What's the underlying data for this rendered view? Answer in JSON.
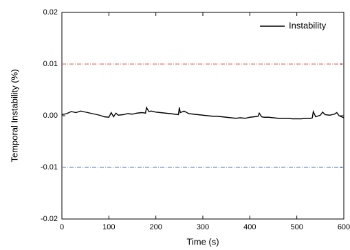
{
  "chart_data": {
    "type": "line",
    "xlabel": "Time (s)",
    "ylabel": "Temporal Instability (%)",
    "xlim": [
      0,
      600
    ],
    "ylim": [
      -0.02,
      0.02
    ],
    "xticks": [
      0,
      100,
      200,
      300,
      400,
      500,
      600
    ],
    "yticks": [
      -0.02,
      -0.01,
      {
        "value": 0,
        "label": "0.00"
      },
      0.01,
      0.02
    ],
    "hlines": [
      {
        "value": 0.01,
        "color": "#e05050"
      },
      {
        "value": -0.01,
        "color": "#5070b0"
      }
    ],
    "legend": "upper right",
    "x": [
      0,
      10,
      20,
      30,
      40,
      50,
      60,
      70,
      80,
      90,
      100,
      105,
      110,
      115,
      120,
      130,
      140,
      150,
      160,
      170,
      178,
      180,
      185,
      190,
      200,
      210,
      220,
      230,
      240,
      248,
      250,
      252,
      260,
      270,
      280,
      290,
      300,
      310,
      320,
      330,
      340,
      350,
      360,
      370,
      380,
      390,
      400,
      410,
      418,
      420,
      425,
      430,
      440,
      450,
      460,
      470,
      480,
      490,
      500,
      510,
      520,
      530,
      533,
      535,
      540,
      550,
      555,
      560,
      570,
      580,
      585,
      590,
      600
    ],
    "series": [
      {
        "name": "Instability",
        "color": "#000000",
        "values": [
          0.0002,
          0.0004,
          0.0008,
          0.0006,
          0.0009,
          0.0007,
          0.0005,
          0.0003,
          0.0001,
          -0.0002,
          -0.0003,
          0.0006,
          -0.0002,
          0.0005,
          0.0001,
          0.0002,
          0.0004,
          0.0003,
          0.0005,
          0.0006,
          0.0005,
          0.0016,
          0.0008,
          0.0009,
          0.0007,
          0.0006,
          0.0005,
          0.0004,
          0.0003,
          0.0002,
          0.0016,
          0.0006,
          0.0009,
          0.0004,
          0.0003,
          0.0002,
          0.0001,
          0,
          -0.0001,
          -0.0001,
          -0.0002,
          -0.0003,
          -0.0004,
          -0.0005,
          -0.0004,
          -0.0005,
          -0.0003,
          -0.0002,
          -0.0001,
          0.0005,
          -0.0002,
          -0.0003,
          -0.0003,
          -0.0004,
          -0.0005,
          -0.0005,
          -0.0005,
          -0.0006,
          -0.0006,
          -0.0006,
          -0.0005,
          -0.0005,
          -0.0004,
          0.0008,
          -0.0002,
          0.0001,
          0.0007,
          0.0002,
          0.0001,
          0.0003,
          0.0006,
          0,
          -0.0004
        ]
      }
    ]
  }
}
